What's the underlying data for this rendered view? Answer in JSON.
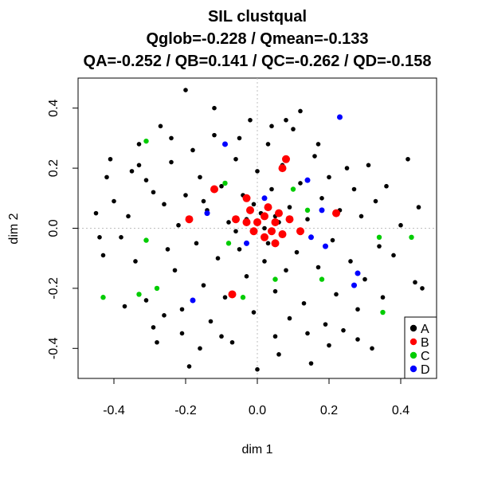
{
  "chart_data": {
    "type": "scatter",
    "title_lines": [
      "SIL clustqual",
      "Qglob=-0.228 / Qmean=-0.133",
      "QA=-0.252 / QB=0.141 / QC=-0.262 / QD=-0.158"
    ],
    "xlabel": "dim 1",
    "ylabel": "dim 2",
    "xlim": [
      -0.5,
      0.5
    ],
    "ylim": [
      -0.5,
      0.5
    ],
    "x_ticks": [
      -0.4,
      -0.2,
      0.0,
      0.2,
      0.4
    ],
    "y_ticks": [
      -0.4,
      -0.2,
      0.0,
      0.2,
      0.4
    ],
    "x_tick_labels": [
      "-0.4",
      "-0.2",
      "0.0",
      "0.2",
      "0.4"
    ],
    "y_tick_labels": [
      "-0.4",
      "-0.2",
      "0.0",
      "0.2",
      "0.4"
    ],
    "reference_lines": {
      "x": 0,
      "y": 0,
      "style": "dotted",
      "color": "#bfbfbf"
    },
    "legend_position": "bottom-right",
    "series": [
      {
        "name": "A",
        "color": "#000000",
        "points": [
          [
            -0.2,
            0.46
          ],
          [
            -0.45,
            0.05
          ],
          [
            -0.44,
            -0.03
          ],
          [
            -0.43,
            -0.09
          ],
          [
            -0.42,
            0.17
          ],
          [
            -0.41,
            0.23
          ],
          [
            -0.4,
            0.09
          ],
          [
            -0.38,
            -0.03
          ],
          [
            -0.36,
            0.04
          ],
          [
            -0.35,
            0.19
          ],
          [
            -0.34,
            -0.11
          ],
          [
            -0.33,
            0.28
          ],
          [
            -0.31,
            0.16
          ],
          [
            -0.31,
            -0.24
          ],
          [
            -0.29,
            0.12
          ],
          [
            -0.29,
            -0.33
          ],
          [
            -0.28,
            -0.38
          ],
          [
            -0.27,
            0.34
          ],
          [
            -0.26,
            0.08
          ],
          [
            -0.25,
            -0.07
          ],
          [
            -0.24,
            0.22
          ],
          [
            -0.23,
            -0.14
          ],
          [
            -0.22,
            0.01
          ],
          [
            -0.21,
            -0.27
          ],
          [
            -0.21,
            -0.35
          ],
          [
            -0.2,
            0.11
          ],
          [
            -0.19,
            -0.46
          ],
          [
            -0.18,
            0.26
          ],
          [
            -0.17,
            -0.05
          ],
          [
            -0.16,
            0.17
          ],
          [
            -0.15,
            -0.19
          ],
          [
            -0.14,
            0.06
          ],
          [
            -0.13,
            -0.31
          ],
          [
            -0.12,
            0.31
          ],
          [
            -0.11,
            -0.1
          ],
          [
            -0.1,
            0.14
          ],
          [
            -0.09,
            -0.23
          ],
          [
            -0.08,
            0.02
          ],
          [
            -0.07,
            -0.38
          ],
          [
            -0.06,
            0.23
          ],
          [
            -0.05,
            -0.07
          ],
          [
            -0.04,
            0.11
          ],
          [
            -0.03,
            -0.16
          ],
          [
            -0.02,
            0.36
          ],
          [
            -0.01,
            -0.28
          ],
          [
            0.0,
            -0.47
          ],
          [
            0.0,
            0.19
          ],
          [
            0.01,
            0.05
          ],
          [
            0.02,
            -0.11
          ],
          [
            0.03,
            0.28
          ],
          [
            0.03,
            -0.05
          ],
          [
            0.04,
            0.13
          ],
          [
            0.05,
            -0.21
          ],
          [
            0.05,
            -0.36
          ],
          [
            0.06,
            0.02
          ],
          [
            0.07,
            0.21
          ],
          [
            0.08,
            -0.14
          ],
          [
            0.09,
            0.07
          ],
          [
            0.09,
            -0.3
          ],
          [
            0.1,
            0.33
          ],
          [
            0.11,
            -0.08
          ],
          [
            0.12,
            0.15
          ],
          [
            0.13,
            -0.25
          ],
          [
            0.14,
            0.03
          ],
          [
            0.15,
            -0.45
          ],
          [
            0.16,
            0.24
          ],
          [
            0.17,
            -0.13
          ],
          [
            0.18,
            0.1
          ],
          [
            0.19,
            -0.32
          ],
          [
            0.2,
            0.17
          ],
          [
            0.21,
            -0.04
          ],
          [
            0.22,
            -0.22
          ],
          [
            0.23,
            0.06
          ],
          [
            0.24,
            -0.34
          ],
          [
            0.25,
            0.2
          ],
          [
            0.26,
            -0.11
          ],
          [
            0.27,
            0.13
          ],
          [
            0.28,
            -0.27
          ],
          [
            0.29,
            0.04
          ],
          [
            0.3,
            -0.17
          ],
          [
            0.31,
            0.21
          ],
          [
            0.32,
            -0.4
          ],
          [
            0.33,
            0.09
          ],
          [
            0.34,
            -0.06
          ],
          [
            0.35,
            -0.23
          ],
          [
            0.36,
            0.14
          ],
          [
            0.38,
            -0.09
          ],
          [
            0.4,
            0.01
          ],
          [
            0.42,
            0.23
          ],
          [
            0.44,
            -0.18
          ],
          [
            0.45,
            0.07
          ],
          [
            0.46,
            -0.2
          ],
          [
            -0.37,
            -0.26
          ],
          [
            -0.26,
            -0.29
          ],
          [
            -0.16,
            -0.4
          ],
          [
            -0.1,
            -0.36
          ],
          [
            0.06,
            -0.42
          ],
          [
            0.14,
            -0.35
          ],
          [
            0.2,
            -0.39
          ],
          [
            0.28,
            -0.37
          ],
          [
            -0.12,
            0.4
          ],
          [
            0.08,
            0.36
          ],
          [
            0.17,
            0.28
          ],
          [
            -0.24,
            0.3
          ],
          [
            -0.33,
            0.21
          ],
          [
            -0.05,
            0.3
          ],
          [
            0.04,
            0.34
          ],
          [
            0.12,
            0.39
          ],
          [
            -0.15,
            0.09
          ],
          [
            -0.03,
            0.03
          ],
          [
            0.02,
            0.0
          ],
          [
            0.05,
            0.04
          ],
          [
            -0.01,
            0.08
          ],
          [
            0.07,
            -0.02
          ],
          [
            -0.06,
            -0.01
          ]
        ]
      },
      {
        "name": "B",
        "color": "#ff0000",
        "points": [
          [
            0.08,
            0.23
          ],
          [
            0.07,
            0.2
          ],
          [
            -0.12,
            0.13
          ],
          [
            -0.03,
            0.1
          ],
          [
            -0.02,
            0.06
          ],
          [
            0.03,
            0.07
          ],
          [
            0.06,
            0.05
          ],
          [
            -0.19,
            0.03
          ],
          [
            -0.06,
            0.03
          ],
          [
            -0.03,
            0.02
          ],
          [
            0.0,
            0.02
          ],
          [
            0.02,
            0.04
          ],
          [
            0.05,
            0.02
          ],
          [
            0.09,
            0.03
          ],
          [
            0.22,
            0.05
          ],
          [
            -0.01,
            -0.01
          ],
          [
            0.04,
            -0.01
          ],
          [
            0.07,
            -0.02
          ],
          [
            0.12,
            -0.01
          ],
          [
            0.02,
            -0.03
          ],
          [
            0.05,
            -0.05
          ],
          [
            -0.07,
            -0.22
          ]
        ]
      },
      {
        "name": "C",
        "color": "#00cc00",
        "points": [
          [
            -0.31,
            0.29
          ],
          [
            -0.31,
            -0.04
          ],
          [
            -0.33,
            -0.22
          ],
          [
            -0.28,
            -0.2
          ],
          [
            -0.43,
            -0.23
          ],
          [
            0.35,
            -0.28
          ],
          [
            0.43,
            -0.03
          ],
          [
            0.34,
            -0.03
          ],
          [
            0.18,
            -0.17
          ],
          [
            -0.04,
            -0.23
          ],
          [
            0.05,
            -0.17
          ],
          [
            -0.08,
            -0.05
          ],
          [
            -0.09,
            0.15
          ],
          [
            0.1,
            0.13
          ],
          [
            0.14,
            0.06
          ]
        ]
      },
      {
        "name": "D",
        "color": "#0000ff",
        "points": [
          [
            0.23,
            0.37
          ],
          [
            -0.09,
            0.28
          ],
          [
            0.14,
            0.16
          ],
          [
            -0.14,
            0.05
          ],
          [
            0.18,
            0.06
          ],
          [
            0.15,
            -0.03
          ],
          [
            -0.03,
            -0.05
          ],
          [
            0.19,
            -0.06
          ],
          [
            0.28,
            -0.15
          ],
          [
            0.27,
            -0.19
          ],
          [
            -0.18,
            -0.24
          ],
          [
            0.02,
            0.1
          ]
        ]
      }
    ]
  }
}
